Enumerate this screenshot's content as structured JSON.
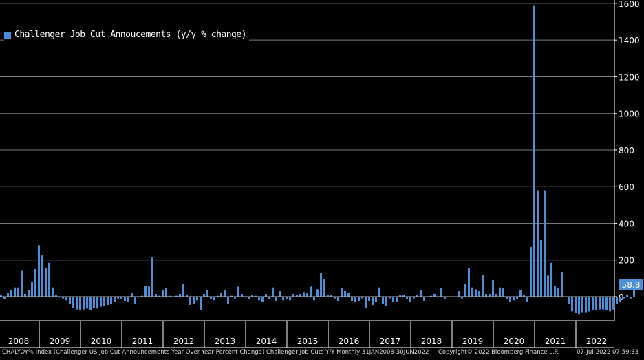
{
  "colors": {
    "background": "#000000",
    "bar": "#4a90d9",
    "grid": "#7a7a7a",
    "text": "#ffffff"
  },
  "chart_data": {
    "type": "bar",
    "title": "",
    "xlabel": "",
    "ylabel": "",
    "ylim": [
      -150,
      1600
    ],
    "grid": true,
    "legend_position": "top-left",
    "y_axis_side": "right",
    "yticks": [
      1600,
      1400,
      1200,
      1000,
      800,
      600,
      400,
      200,
      0
    ],
    "year_labels": [
      "2008",
      "2009",
      "2010",
      "2011",
      "2012",
      "2013",
      "2014",
      "2015",
      "2016",
      "2017",
      "2018",
      "2019",
      "2020",
      "2021",
      "2022"
    ],
    "series": [
      {
        "name": "Challenger Job Cut Annoucements (y/y % change)",
        "start": "2008-01",
        "frequency": "monthly",
        "values": [
          10,
          -15,
          20,
          35,
          50,
          50,
          145,
          15,
          35,
          80,
          150,
          280,
          225,
          155,
          185,
          50,
          10,
          -5,
          -10,
          -20,
          -40,
          -60,
          -70,
          -75,
          -70,
          -65,
          -75,
          -60,
          -65,
          -55,
          -50,
          -45,
          -40,
          -30,
          -10,
          -15,
          -25,
          -30,
          20,
          -40,
          -5,
          5,
          60,
          55,
          215,
          15,
          5,
          35,
          45,
          5,
          0,
          5,
          15,
          70,
          10,
          -45,
          -40,
          -20,
          -75,
          15,
          35,
          -15,
          -20,
          5,
          20,
          35,
          -40,
          5,
          -10,
          55,
          15,
          -5,
          -15,
          10,
          5,
          -20,
          -30,
          15,
          -15,
          50,
          -25,
          30,
          -20,
          -15,
          -20,
          15,
          10,
          15,
          25,
          20,
          55,
          -20,
          40,
          130,
          95,
          10,
          10,
          -10,
          -25,
          45,
          30,
          20,
          -25,
          -30,
          -25,
          -10,
          -60,
          -25,
          -45,
          -30,
          50,
          -40,
          -50,
          -10,
          -30,
          -30,
          10,
          10,
          -15,
          -30,
          -10,
          10,
          35,
          -25,
          0,
          5,
          15,
          -5,
          45,
          -15,
          0,
          0,
          0,
          30,
          -10,
          70,
          155,
          50,
          40,
          30,
          120,
          15,
          15,
          90,
          15,
          50,
          45,
          -15,
          -30,
          -20,
          -15,
          35,
          10,
          -30,
          270,
          1590,
          580,
          310,
          580,
          115,
          185,
          60,
          45,
          135,
          0,
          -40,
          -80,
          -90,
          -95,
          -85,
          -85,
          -80,
          -75,
          -75,
          -70,
          -70,
          -75,
          -80,
          -70,
          -40,
          -30,
          -10,
          10,
          -10,
          60
        ]
      }
    ],
    "last_value_label": "58.8"
  },
  "footer": {
    "description": "CHALYOY% Index (Challenger US Job Cut Announcements Year Over Year Percent Change) Challenger Job Cuts Y/Y  Monthly 31JAN2008-30JUN2022",
    "copyright": "Copyright© 2022 Bloomberg Finance L.P.",
    "timestamp": "07-Jul-2022 07:59:33"
  }
}
